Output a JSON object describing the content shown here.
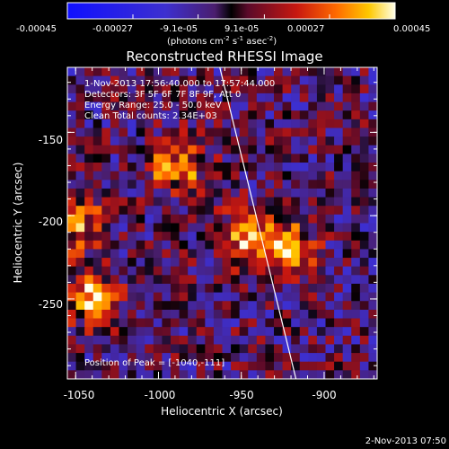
{
  "colorbar": {
    "ticks": [
      "-0.00045",
      "-0.00027",
      "-9.1e-05",
      "9.1e-05",
      "0.00027",
      "0.00045"
    ],
    "units_main": "(photons cm",
    "units_exp1": "-2",
    "units_mid": " s",
    "units_exp2": "-1",
    "units_end": " asec",
    "units_exp3": "-2",
    "units_close": ")"
  },
  "title": "Reconstructed RHESSI Image",
  "info": {
    "line1": "1-Nov-2013 17:56:40.000 to 17:57:44.000",
    "line2": "Detectors: 3F 5F 6F 7F 8F 9F, Att 0",
    "line3": "Energy Range: 25.0 - 50.0 keV",
    "line4": "Clean    Total counts: 2.34E+03"
  },
  "peak_label": "Position of Peak = [-1040,-111]",
  "footer_date": "2-Nov-2013 07:50",
  "chart_data": {
    "type": "heatmap",
    "title": "Reconstructed RHESSI Image",
    "xlabel": "Heliocentric X (arcsec)",
    "ylabel": "Heliocentric Y (arcsec)",
    "xlim": [
      -1055,
      -868
    ],
    "ylim": [
      -298,
      -111
    ],
    "x_ticks": [
      -1050,
      -1000,
      -950,
      -900
    ],
    "y_ticks": [
      -150,
      -200,
      -250
    ],
    "x_tick_labels": [
      "-1050",
      "-1000",
      "-950",
      "-900"
    ],
    "y_tick_labels": [
      "-150",
      "-200",
      "-250"
    ],
    "colorbar_range": [
      -0.00045,
      0.00045
    ],
    "colorbar_tick_values": [
      -0.00045,
      -0.00027,
      -9.1e-05,
      9.1e-05,
      0.00027,
      0.00045
    ],
    "limb_line": [
      [
        -963,
        -111
      ],
      [
        -917,
        -298
      ]
    ],
    "bright_sources": [
      {
        "x": -988,
        "y": -170,
        "value": 0.0004
      },
      {
        "x": -948,
        "y": -212,
        "value": 0.00035
      },
      {
        "x": -923,
        "y": -220,
        "value": 0.00038
      },
      {
        "x": -1040,
        "y": -250,
        "value": 0.0004
      },
      {
        "x": -1050,
        "y": -205,
        "value": 0.0003
      }
    ],
    "peak_position": [
      -1040,
      -111
    ],
    "grid": false
  }
}
